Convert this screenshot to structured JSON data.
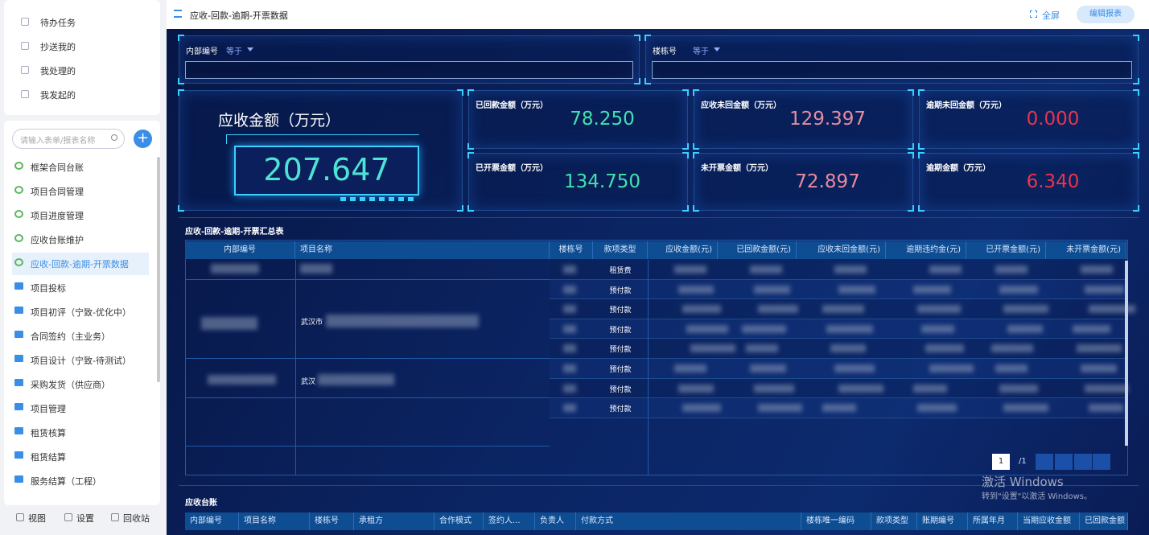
{
  "sidebar": {
    "tasks": [
      "待办任务",
      "抄送我的",
      "我处理的",
      "我发起的"
    ],
    "search_placeholder": "请输入表单/报表名称",
    "menu": [
      "框架合同台账",
      "项目合同管理",
      "项目进度管理",
      "应收台账维护",
      "应收-回款-逾期-开票数据",
      "项目投标",
      "项目初评（宁致-优化中）",
      "合同签约（主业务）",
      "项目设计（宁致-待测试）",
      "采购发货（供应商）",
      "项目管理",
      "租赁核算",
      "租赁结算",
      "服务结算（工程）"
    ],
    "active": "应收-回款-逾期-开票数据",
    "footer": [
      "视图",
      "设置",
      "回收站"
    ]
  },
  "header": {
    "title": "应收-回款-逾期-开票数据",
    "actions": [
      "全屏",
      "编辑报表"
    ]
  },
  "filters": [
    {
      "label": "内部编号",
      "operator": "等于"
    },
    {
      "label": "楼栋号",
      "operator": "等于"
    }
  ],
  "kpi_main": {
    "label": "应收金额（万元）",
    "value": "207.647"
  },
  "kpis": [
    {
      "label": "已回款金额（万元）",
      "value": "78.250"
    },
    {
      "label": "应收未回金额（万元）",
      "value": "129.397"
    },
    {
      "label": "逾期未回金额（万元）",
      "value": "0.000"
    },
    {
      "label": "已开票金额（万元）",
      "value": "134.750"
    },
    {
      "label": "未开票金额（万元）",
      "value": "72.897"
    },
    {
      "label": "逾期金额（万元）",
      "value": "6.340"
    }
  ],
  "summary_table": {
    "title": "应收-回款-逾期-开票汇总表",
    "columns": [
      "内部编号",
      "项目名称",
      "楼栋号",
      "款项类型",
      "应收金额(元)",
      "已回款金额(元)",
      "应收未回金额(元)",
      "逾期违约金(元)",
      "已开票金额(元)",
      "未开票金额(元)"
    ],
    "payment_types": [
      "租赁费",
      "预付款",
      "预付款",
      "预付款",
      "预付款",
      "预付款",
      "预付款",
      "预付款"
    ],
    "project_names": [
      "武汉市",
      "武汉"
    ],
    "pagination": {
      "page": "1",
      "total": "/1"
    }
  },
  "ledger_table": {
    "title": "应收台账",
    "columns": [
      "内部编号",
      "项目名称",
      "楼栋号",
      "承租方",
      "合作模式",
      "签约人...",
      "负责人",
      "付款方式",
      "楼栋唯一编码",
      "款项类型",
      "账期编号",
      "所属年月",
      "当期应收金额",
      "已回款金额"
    ]
  },
  "watermark": {
    "title": "激活 Windows",
    "subtitle": "转到\"设置\"以激活 Windows。"
  }
}
